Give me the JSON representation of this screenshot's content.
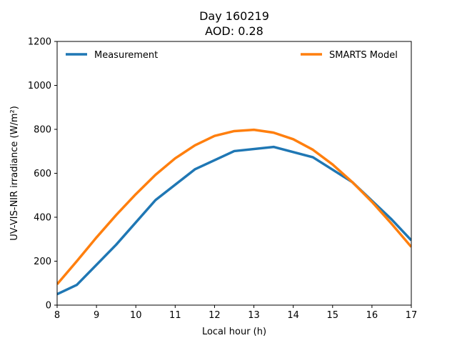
{
  "chart_data": {
    "type": "line",
    "title_line1": "Day 160219",
    "title_line2": "AOD: 0.28",
    "xlabel": "Local hour (h)",
    "ylabel": "UV-VIS-NIR irradiance (W/m²)",
    "xlim": [
      8,
      17
    ],
    "ylim": [
      0,
      1200
    ],
    "xticks": [
      8,
      9,
      10,
      11,
      12,
      13,
      14,
      15,
      16,
      17
    ],
    "yticks": [
      0,
      200,
      400,
      600,
      800,
      1000,
      1200
    ],
    "grid": false,
    "legend_placement": "top",
    "series": [
      {
        "name": "Measurement",
        "color": "#1f77b4",
        "x": [
          8,
          8.5,
          9.5,
          10.5,
          11.5,
          12.5,
          13.5,
          14.5,
          15.5,
          16.5,
          17
        ],
        "y": [
          50,
          92,
          275,
          478,
          618,
          701,
          720,
          673,
          560,
          390,
          295
        ]
      },
      {
        "name": "SMARTS Model",
        "color": "#ff7f0e",
        "x": [
          8,
          8.5,
          9,
          9.5,
          10,
          10.5,
          11,
          11.5,
          12,
          12.5,
          13,
          13.5,
          14,
          14.5,
          15,
          15.5,
          16,
          16.5,
          17
        ],
        "y": [
          95,
          200,
          308,
          410,
          505,
          593,
          668,
          727,
          770,
          792,
          798,
          785,
          755,
          707,
          640,
          560,
          470,
          370,
          265
        ]
      }
    ]
  }
}
